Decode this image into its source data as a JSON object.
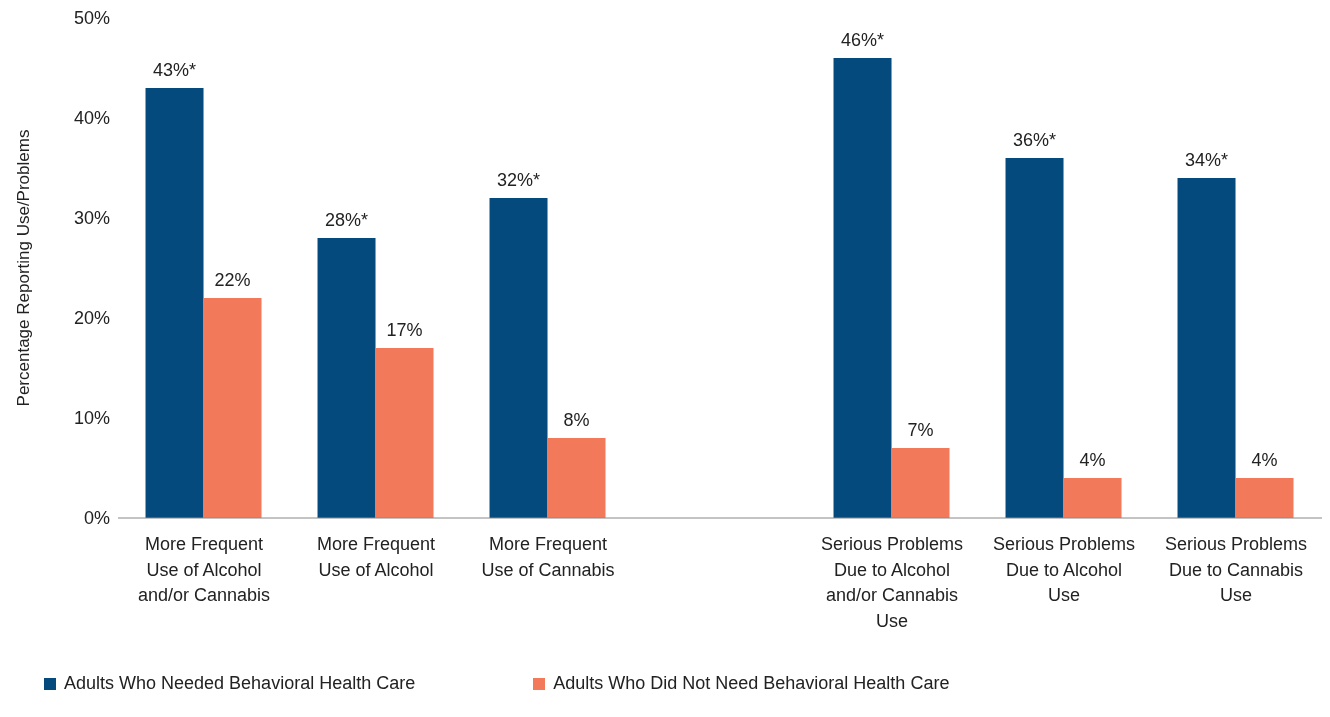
{
  "chart_data": {
    "type": "bar",
    "ylabel": "Percentage Reporting Use/Problems",
    "categories": [
      "More Frequent Use of Alcohol and/or Cannabis",
      "More Frequent Use of Alcohol",
      "More Frequent Use of Cannabis",
      null,
      "Serious Problems Due to Alcohol and/or Cannabis Use",
      "Serious Problems Due to Alcohol Use",
      "Serious Problems Due to Cannabis Use"
    ],
    "series": [
      {
        "name": "Adults Who Needed Behavioral Health Care",
        "color": "#044a7d",
        "values": [
          43,
          28,
          32,
          null,
          46,
          36,
          34
        ],
        "value_labels": [
          "43%*",
          "28%*",
          "32%*",
          null,
          "46%*",
          "36%*",
          "34%*"
        ]
      },
      {
        "name": "Adults Who Did Not Need Behavioral Health Care",
        "color": "#f27a5a",
        "values": [
          22,
          17,
          8,
          null,
          7,
          4,
          4
        ],
        "value_labels": [
          "22%",
          "17%",
          "8%",
          null,
          "7%",
          "4%",
          "4%"
        ]
      }
    ],
    "ylim": [
      0,
      50
    ],
    "yticks": [
      {
        "value": 0,
        "label": "0%"
      },
      {
        "value": 10,
        "label": "10%"
      },
      {
        "value": 20,
        "label": "20%"
      },
      {
        "value": 30,
        "label": "30%"
      },
      {
        "value": 40,
        "label": "40%"
      },
      {
        "value": 50,
        "label": "50%"
      }
    ],
    "grid": false,
    "legend": "bottom left"
  }
}
